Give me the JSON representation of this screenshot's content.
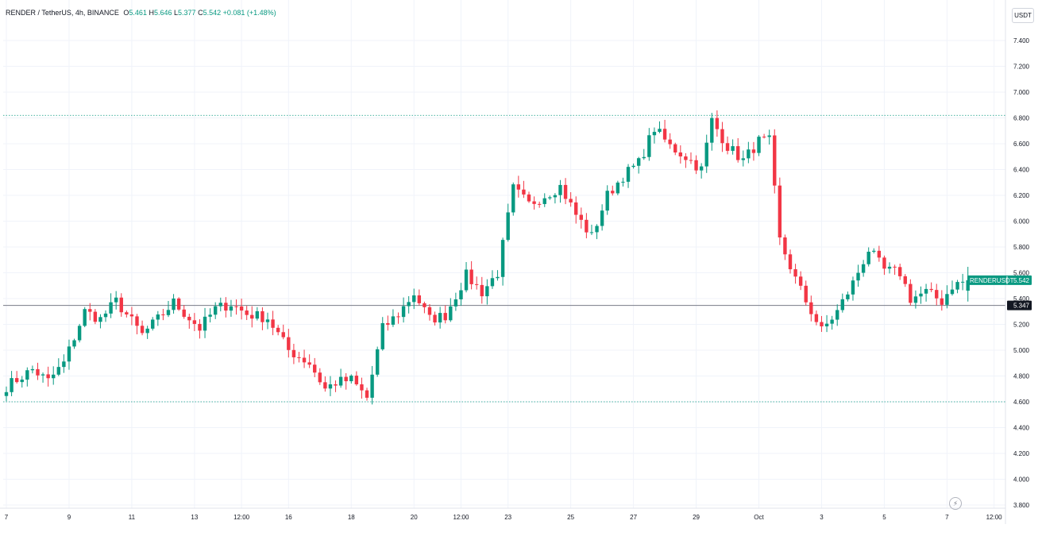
{
  "legend": {
    "symbol": "RENDER / TetherUS, 4h, BINANCE",
    "open_label": "O",
    "open": "5.461",
    "high_label": "H",
    "high": "5.646",
    "low_label": "L",
    "low": "5.377",
    "close_label": "C",
    "close": "5.542",
    "change": "+0.081 (+1.48%)"
  },
  "currency_button": "USDT",
  "colors": {
    "up": "#089981",
    "down": "#f23645",
    "grid": "#f0f3fa",
    "text": "#131722"
  },
  "chart_data": {
    "type": "candlestick",
    "symbol": "RENDERUSDT",
    "interval": "4h",
    "ylim": [
      3.75,
      7.6
    ],
    "y_ticks": [
      "3.800",
      "4.000",
      "4.200",
      "4.400",
      "4.600",
      "4.800",
      "5.000",
      "5.200",
      "5.400",
      "5.600",
      "5.800",
      "6.000",
      "6.200",
      "6.400",
      "6.600",
      "6.800",
      "7.000",
      "7.200",
      "7.400"
    ],
    "x_ticks": [
      {
        "label": "7",
        "index": 0
      },
      {
        "label": "9",
        "index": 12
      },
      {
        "label": "11",
        "index": 24
      },
      {
        "label": "13",
        "index": 36
      },
      {
        "label": "12:00",
        "index": 45
      },
      {
        "label": "16",
        "index": 54
      },
      {
        "label": "18",
        "index": 66
      },
      {
        "label": "20",
        "index": 78
      },
      {
        "label": "12:00",
        "index": 87
      },
      {
        "label": "23",
        "index": 96
      },
      {
        "label": "25",
        "index": 108
      },
      {
        "label": "27",
        "index": 120
      },
      {
        "label": "29",
        "index": 132
      },
      {
        "label": "Oct",
        "index": 144
      },
      {
        "label": "3",
        "index": 156
      },
      {
        "label": "5",
        "index": 168
      },
      {
        "label": "7",
        "index": 180
      },
      {
        "label": "12:00",
        "index": 189
      }
    ],
    "horizontal_lines": [
      {
        "value": 6.82,
        "style": "dotted",
        "color": "#089981"
      },
      {
        "value": 4.6,
        "style": "dotted",
        "color": "#089981"
      },
      {
        "value": 5.347,
        "style": "solid",
        "color": "#787b86"
      }
    ],
    "price_labels": [
      {
        "name": "RENDERUSDT",
        "value": "5.542",
        "y": 5.542,
        "color": "#089981"
      },
      {
        "name": "",
        "value": "5.347",
        "y": 5.347,
        "color": "#131722"
      }
    ],
    "waypoints": [
      [
        0,
        4.72
      ],
      [
        5,
        4.85
      ],
      [
        8,
        4.76
      ],
      [
        11,
        4.9
      ],
      [
        15,
        5.3
      ],
      [
        18,
        5.24
      ],
      [
        21,
        5.38
      ],
      [
        26,
        5.12
      ],
      [
        29,
        5.24
      ],
      [
        32,
        5.37
      ],
      [
        37,
        5.17
      ],
      [
        40,
        5.32
      ],
      [
        43,
        5.36
      ],
      [
        46,
        5.28
      ],
      [
        50,
        5.25
      ],
      [
        54,
        5.0
      ],
      [
        58,
        4.9
      ],
      [
        61,
        4.7
      ],
      [
        63,
        4.75
      ],
      [
        66,
        4.77
      ],
      [
        69,
        4.63
      ],
      [
        72,
        5.17
      ],
      [
        75,
        5.28
      ],
      [
        78,
        5.44
      ],
      [
        81,
        5.24
      ],
      [
        84,
        5.27
      ],
      [
        88,
        5.58
      ],
      [
        91,
        5.45
      ],
      [
        94,
        5.6
      ],
      [
        97,
        6.25
      ],
      [
        100,
        6.13
      ],
      [
        103,
        6.2
      ],
      [
        106,
        6.27
      ],
      [
        109,
        6.05
      ],
      [
        112,
        5.88
      ],
      [
        115,
        6.2
      ],
      [
        118,
        6.35
      ],
      [
        121,
        6.45
      ],
      [
        124,
        6.72
      ],
      [
        127,
        6.58
      ],
      [
        130,
        6.5
      ],
      [
        133,
        6.4
      ],
      [
        135,
        6.78
      ],
      [
        138,
        6.58
      ],
      [
        141,
        6.47
      ],
      [
        144,
        6.62
      ],
      [
        146,
        6.62
      ],
      [
        148,
        5.85
      ],
      [
        151,
        5.55
      ],
      [
        153,
        5.38
      ],
      [
        156,
        5.15
      ],
      [
        159,
        5.3
      ],
      [
        162,
        5.52
      ],
      [
        165,
        5.78
      ],
      [
        168,
        5.62
      ],
      [
        171,
        5.6
      ],
      [
        173,
        5.4
      ],
      [
        176,
        5.45
      ],
      [
        179,
        5.38
      ],
      [
        181,
        5.5
      ],
      [
        184,
        5.542
      ]
    ]
  }
}
